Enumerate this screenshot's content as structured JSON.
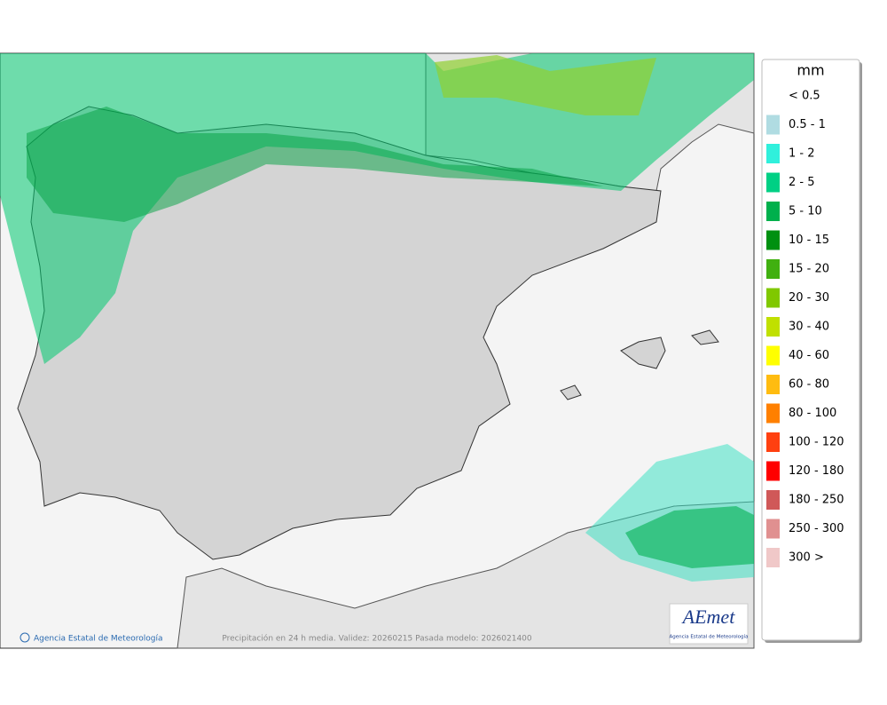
{
  "legend": {
    "title": "mm",
    "items": [
      {
        "label": "< 0.5"
      },
      {
        "label": "0.5 - 1",
        "color": "#b0dce2"
      },
      {
        "label": "1 - 2",
        "color": "#30f0dc"
      },
      {
        "label": "2 - 5",
        "color": "#00d084"
      },
      {
        "label": "5 - 10",
        "color": "#00b04c"
      },
      {
        "label": "10 - 15",
        "color": "#009010"
      },
      {
        "label": "15 - 20",
        "color": "#40b010"
      },
      {
        "label": "20 - 30",
        "color": "#80c800"
      },
      {
        "label": "30 - 40",
        "color": "#c0e000"
      },
      {
        "label": "40 - 60",
        "color": "#ffff00"
      },
      {
        "label": "60 - 80",
        "color": "#ffbc10"
      },
      {
        "label": "80 - 100",
        "color": "#ff8000"
      },
      {
        "label": "100 - 120",
        "color": "#ff4010"
      },
      {
        "label": "120 - 180",
        "color": "#ff0000"
      },
      {
        "label": "180 - 250",
        "color": "#d05858"
      },
      {
        "label": "250 - 300",
        "color": "#e09090"
      },
      {
        "label": "300 >",
        "color": "#f0c8c8"
      }
    ]
  },
  "footer": {
    "agency": "Agencia Estatal de Meteorología",
    "caption": "Precipitación en 24 h media. Validez: 20260215 Pasada modelo: 2026021400"
  },
  "logo": {
    "name": "AEmet",
    "subtitle": "Agencia Estatal de Meteorología"
  }
}
